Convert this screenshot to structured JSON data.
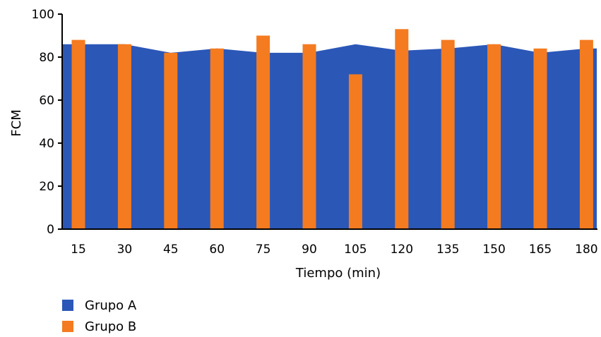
{
  "chart_data": {
    "type": "bar",
    "title": "",
    "xlabel": "Tiempo (min)",
    "ylabel": "FCM",
    "ylim": [
      0,
      100
    ],
    "yticks": [
      0,
      20,
      40,
      60,
      80,
      100
    ],
    "categories": [
      "15",
      "30",
      "45",
      "60",
      "75",
      "90",
      "105",
      "120",
      "135",
      "150",
      "165",
      "180"
    ],
    "series": [
      {
        "name": "Grupo A",
        "type": "area",
        "color": "#2b57b7",
        "values": [
          86,
          86,
          82,
          84,
          82,
          82,
          86,
          83,
          84,
          86,
          82,
          84
        ]
      },
      {
        "name": "Grupo B",
        "type": "bar",
        "color": "#f47b20",
        "values": [
          88,
          86,
          82,
          84,
          90,
          86,
          72,
          93,
          88,
          86,
          84,
          88
        ]
      }
    ],
    "legend_position": "bottom-left",
    "grid": false
  }
}
